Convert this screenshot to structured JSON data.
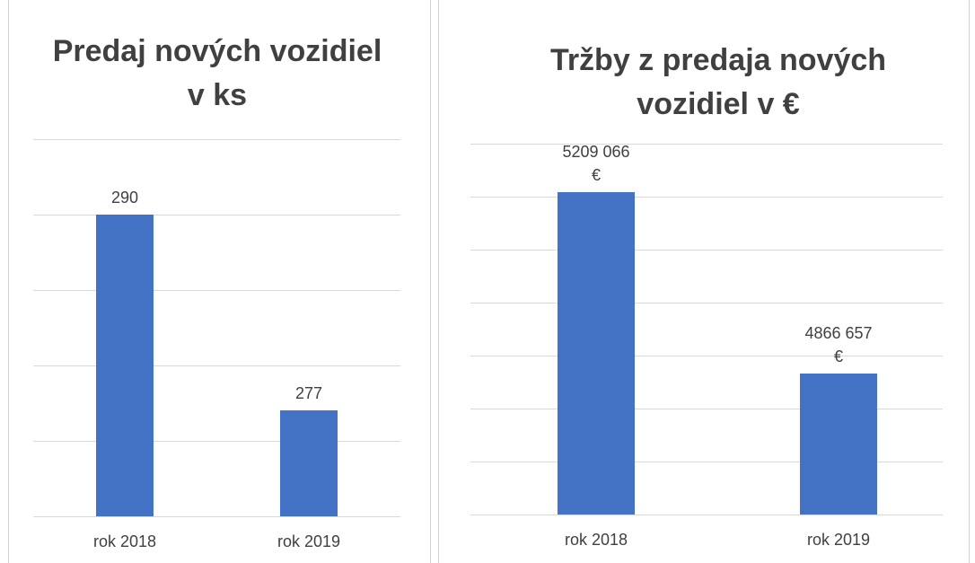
{
  "chart_data": [
    {
      "type": "bar",
      "title": "Predaj nových vozidiel v ks",
      "categories": [
        "rok 2018",
        "rok 2019"
      ],
      "values": [
        290,
        277
      ],
      "color": "#4472c4",
      "ylim": [
        270,
        295
      ],
      "yticks": [
        270,
        275,
        280,
        285,
        290,
        295
      ],
      "grid": true
    },
    {
      "type": "bar",
      "title": "Tržby z predaja nových vozidiel v €",
      "categories": [
        "rok 2018",
        "rok 2019"
      ],
      "values": [
        5209066,
        4866657
      ],
      "value_labels": [
        "5209 066 €",
        "4866 657 €"
      ],
      "color": "#4472c4",
      "ylim": [
        4600000,
        5300000
      ],
      "yticks": [
        4600000,
        4700000,
        4800000,
        4900000,
        5000000,
        5100000,
        5200000,
        5300000
      ],
      "grid": true
    }
  ]
}
